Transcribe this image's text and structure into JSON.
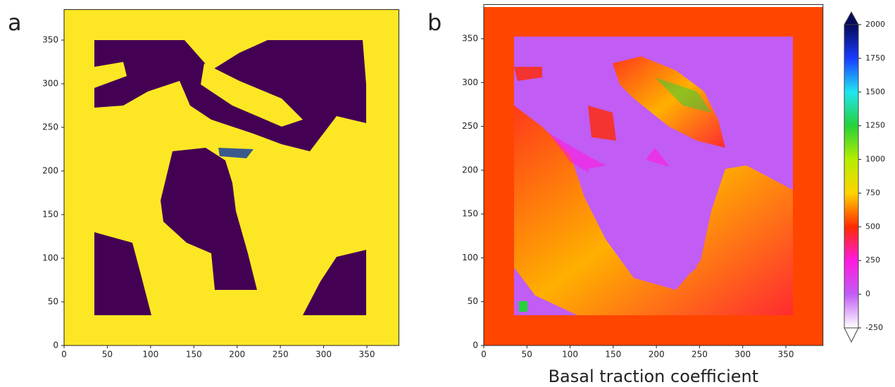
{
  "chart_data": [
    {
      "type": "image",
      "panel_label": "a",
      "xlim": [
        0,
        387
      ],
      "ylim": [
        0,
        385
      ],
      "xticks": [
        0,
        50,
        100,
        150,
        200,
        250,
        300,
        350
      ],
      "yticks": [
        0,
        50,
        100,
        150,
        200,
        250,
        300,
        350
      ]
    },
    {
      "type": "image",
      "panel_label": "b",
      "xlabel": "Basal traction coefficient",
      "xlim": [
        0,
        393
      ],
      "ylim": [
        0,
        389
      ],
      "xticks": [
        0,
        50,
        100,
        150,
        200,
        250,
        300,
        350
      ],
      "yticks": [
        0,
        50,
        100,
        150,
        200,
        250,
        300,
        350
      ],
      "colorbar": {
        "ylim": [
          -250,
          2000
        ],
        "yticks": [
          -250,
          0,
          250,
          500,
          750,
          1000,
          1250,
          1500,
          1750,
          2000
        ],
        "colors": [
          "#ffffff",
          "#c15cf5",
          "#ff19e0",
          "#ff2a00",
          "#ffd400",
          "#b5ee00",
          "#25d13a",
          "#1ee6f0",
          "#1a3bff",
          "#050a5a"
        ]
      }
    }
  ]
}
